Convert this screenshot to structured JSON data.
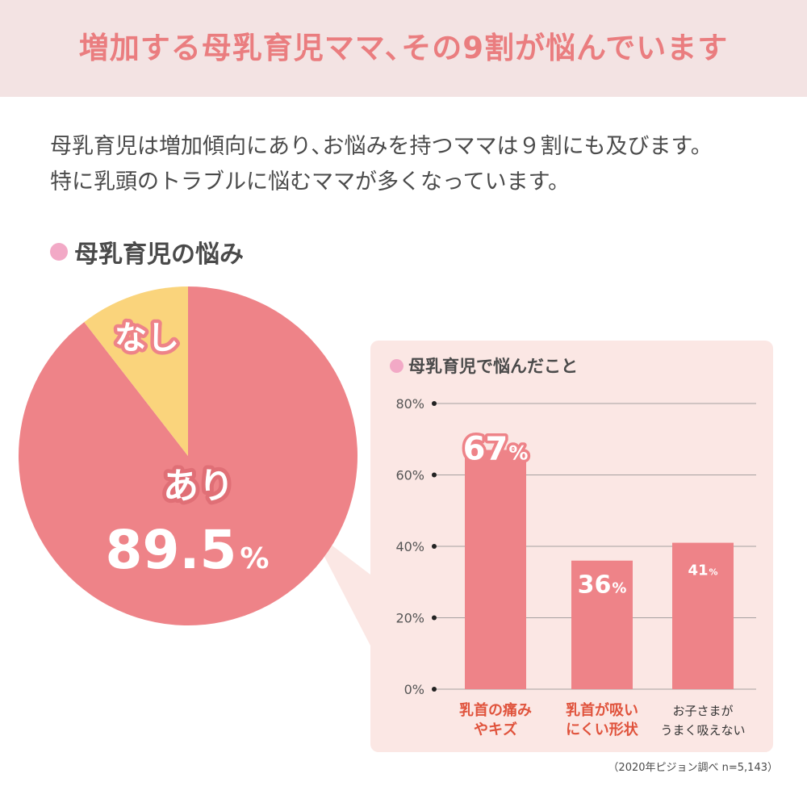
{
  "header": {
    "title": "増加する母乳育児ママ､その9割が悩んでいます"
  },
  "intro": {
    "line1": "母乳育児は増加傾向にあり､お悩みを持つママは９割にも及びます。",
    "line2": "特に乳頭のトラブルに悩むママが多くなっています。"
  },
  "section_title": "母乳育児の悩み",
  "colors": {
    "pink_main": "#ee8388",
    "yellow": "#fad47c",
    "panel_bg": "#fbe7e4",
    "accent_text": "#e0533c",
    "dot": "#f2a9c6"
  },
  "chart_data": [
    {
      "type": "pie",
      "slices": [
        {
          "label": "あり",
          "value": 89.5,
          "display": "89.5",
          "unit": "%",
          "color": "#ee8388"
        },
        {
          "label": "なし",
          "value": 10.5,
          "color": "#fad47c"
        }
      ]
    },
    {
      "type": "bar",
      "title": "母乳育児で悩んだこと",
      "categories": [
        {
          "line1": "乳首の痛み",
          "line2": "やキズ",
          "highlight": true
        },
        {
          "line1": "乳首が吸い",
          "line2": "にくい形状",
          "highlight": true
        },
        {
          "line1": "お子さまが",
          "line2": "うまく吸えない",
          "highlight": false
        }
      ],
      "values": [
        67,
        36,
        41
      ],
      "value_labels": [
        "67",
        "36",
        "41"
      ],
      "value_unit": "%",
      "ylim": [
        0,
        80
      ],
      "yticks": [
        "0%",
        "20%",
        "40%",
        "60%",
        "80%"
      ],
      "grid": true,
      "bar_color": "#ee8388"
    }
  ],
  "source": "（2020年ピジョン調べ n=5,143）"
}
